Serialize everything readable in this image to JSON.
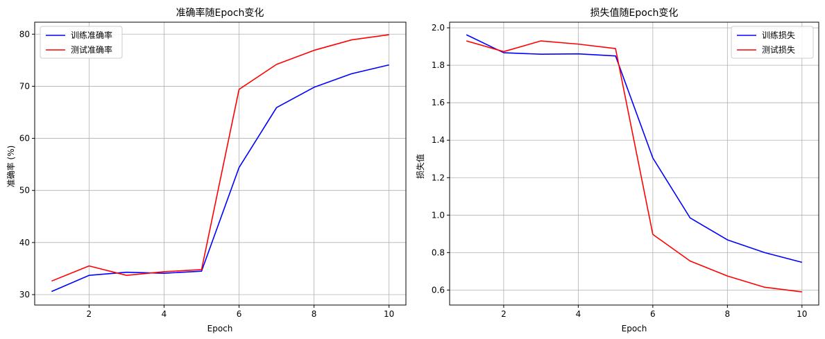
{
  "chart_data": [
    {
      "type": "line",
      "title": "准确率随Epoch变化",
      "xlabel": "Epoch",
      "ylabel": "准确率 (%)",
      "xlim": [
        0.55,
        10.45
      ],
      "ylim": [
        28.0,
        82.3
      ],
      "xticks": [
        2,
        4,
        6,
        8,
        10
      ],
      "yticks": [
        30,
        40,
        50,
        60,
        70,
        80
      ],
      "grid": true,
      "legend_position": "upper-left",
      "x": [
        1,
        2,
        3,
        4,
        5,
        6,
        7,
        8,
        9,
        10
      ],
      "series": [
        {
          "name": "训练准确率",
          "color": "#0000ff",
          "values": [
            30.6,
            33.7,
            34.3,
            34.1,
            34.5,
            54.4,
            65.9,
            69.8,
            72.4,
            74.1
          ]
        },
        {
          "name": "测试准确率",
          "color": "#ff0000",
          "values": [
            32.6,
            35.5,
            33.7,
            34.4,
            34.8,
            69.4,
            74.2,
            76.9,
            78.9,
            79.9
          ]
        }
      ]
    },
    {
      "type": "line",
      "title": "损失值随Epoch变化",
      "xlabel": "Epoch",
      "ylabel": "损失值",
      "xlim": [
        0.55,
        10.45
      ],
      "ylim": [
        0.52,
        2.03
      ],
      "xticks": [
        2,
        4,
        6,
        8,
        10
      ],
      "yticks": [
        0.6,
        0.8,
        1.0,
        1.2,
        1.4,
        1.6,
        1.8,
        2.0
      ],
      "ytick_labels": [
        "0.6",
        "0.8",
        "1.0",
        "1.2",
        "1.4",
        "1.6",
        "1.8",
        "2.0"
      ],
      "grid": true,
      "legend_position": "upper-right",
      "x": [
        1,
        2,
        3,
        4,
        5,
        6,
        7,
        8,
        9,
        10
      ],
      "series": [
        {
          "name": "训练损失",
          "color": "#0000ff",
          "values": [
            1.963,
            1.867,
            1.859,
            1.861,
            1.85,
            1.305,
            0.985,
            0.868,
            0.8,
            0.748
          ]
        },
        {
          "name": "测试损失",
          "color": "#ff0000",
          "values": [
            1.93,
            1.873,
            1.93,
            1.913,
            1.889,
            0.897,
            0.755,
            0.675,
            0.615,
            0.59
          ]
        }
      ]
    }
  ]
}
